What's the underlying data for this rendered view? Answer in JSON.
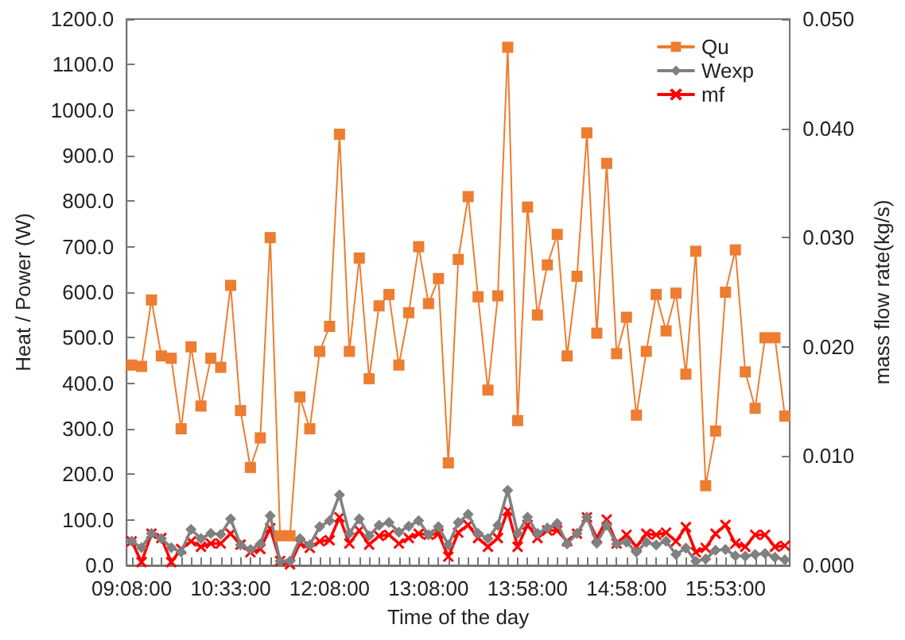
{
  "chart_data": {
    "type": "line",
    "xlabel": "Time of the day",
    "ylabel": "Heat / Power (W)",
    "y2label": "mass flow rate(kg/s)",
    "categories": [
      "09:08:00",
      null,
      null,
      null,
      null,
      null,
      null,
      null,
      null,
      null,
      "10:33:00",
      null,
      null,
      null,
      null,
      null,
      null,
      null,
      null,
      null,
      "12:08:00",
      null,
      null,
      null,
      null,
      null,
      null,
      null,
      null,
      null,
      "13:08:00",
      null,
      null,
      null,
      null,
      null,
      null,
      null,
      null,
      null,
      "13:58:00",
      null,
      null,
      null,
      null,
      null,
      null,
      null,
      null,
      null,
      "14:58:00",
      null,
      null,
      null,
      null,
      null,
      null,
      null,
      null,
      null,
      "15:53:00",
      null,
      null,
      null,
      null,
      null,
      null
    ],
    "series": [
      {
        "name": "Qu",
        "color": "#ed7d31",
        "marker": "square",
        "values": [
          440,
          437,
          583,
          460,
          455,
          300,
          480,
          350,
          455,
          435,
          615,
          340,
          215,
          280,
          720,
          65,
          65,
          370,
          300,
          470,
          525,
          947,
          470,
          675,
          410,
          570,
          595,
          440,
          555,
          700,
          575,
          630,
          225,
          672,
          810,
          590,
          385,
          592,
          1138,
          318,
          787,
          550,
          660,
          727,
          460,
          635,
          950,
          510,
          883,
          465,
          545,
          330,
          470,
          595,
          515,
          598,
          420,
          690,
          175,
          295,
          600,
          693,
          425,
          345,
          500,
          500,
          328
        ]
      },
      {
        "name": "Wexp",
        "color": "#808080",
        "marker": "diamond",
        "values": [
          53,
          39,
          70,
          59,
          39,
          29,
          79,
          59,
          70,
          68,
          102,
          45,
          35,
          47,
          109,
          9,
          9,
          59,
          45,
          85,
          98,
          155,
          70,
          102,
          65,
          88,
          94,
          73,
          86,
          98,
          67,
          85,
          45,
          94,
          112,
          70,
          59,
          88,
          165,
          70,
          106,
          70,
          82,
          92,
          47,
          70,
          106,
          49,
          88,
          47,
          51,
          29,
          51,
          45,
          53,
          24,
          38,
          9,
          14,
          33,
          35,
          21,
          20,
          24,
          26,
          18,
          12
        ]
      },
      {
        "name": "mf",
        "color": "#ff0000",
        "marker": "cross",
        "axis": "y2",
        "values": [
          0.0022,
          0.0003,
          0.0029,
          0.0025,
          0.0003,
          0.0015,
          0.0022,
          0.0017,
          0.002,
          0.002,
          0.0029,
          0.0019,
          0.0012,
          0.0015,
          0.0034,
          0.0004,
          0.0001,
          0.002,
          0.0016,
          0.0022,
          0.0023,
          0.0044,
          0.002,
          0.0032,
          0.0019,
          0.0027,
          0.0028,
          0.002,
          0.0025,
          0.0029,
          0.0028,
          0.0029,
          0.0008,
          0.003,
          0.0037,
          0.0025,
          0.0017,
          0.0025,
          0.005,
          0.0017,
          0.0037,
          0.0025,
          0.0032,
          0.0032,
          0.0022,
          0.0029,
          0.0044,
          0.0025,
          0.0042,
          0.002,
          0.0028,
          0.0017,
          0.0029,
          0.0028,
          0.003,
          0.0022,
          0.0035,
          0.0012,
          0.0016,
          0.0029,
          0.0037,
          0.002,
          0.0017,
          0.0028,
          0.0028,
          0.0017,
          0.0018
        ]
      }
    ],
    "ylim": [
      0,
      1200
    ],
    "yticks": [
      {
        "value": 0,
        "label": "0.0"
      },
      {
        "value": 100,
        "label": "100.0"
      },
      {
        "value": 200,
        "label": "200.0"
      },
      {
        "value": 300,
        "label": "300.0"
      },
      {
        "value": 400,
        "label": "400.0"
      },
      {
        "value": 500,
        "label": "500.0"
      },
      {
        "value": 600,
        "label": "600.0"
      },
      {
        "value": 700,
        "label": "700.0"
      },
      {
        "value": 800,
        "label": "800.0"
      },
      {
        "value": 900,
        "label": "900.0"
      },
      {
        "value": 1000,
        "label": "1000.0"
      },
      {
        "value": 1100,
        "label": "1100.0"
      },
      {
        "value": 1200,
        "label": "1200.0"
      }
    ],
    "y2lim": [
      0,
      0.05
    ],
    "y2ticks": [
      {
        "value": 0,
        "label": "0.000"
      },
      {
        "value": 0.01,
        "label": "0.010"
      },
      {
        "value": 0.02,
        "label": "0.020"
      },
      {
        "value": 0.03,
        "label": "0.030"
      },
      {
        "value": 0.04,
        "label": "0.040"
      },
      {
        "value": 0.05,
        "label": "0.050"
      }
    ],
    "grid": false,
    "legend": "top right",
    "line_style": "solid"
  }
}
